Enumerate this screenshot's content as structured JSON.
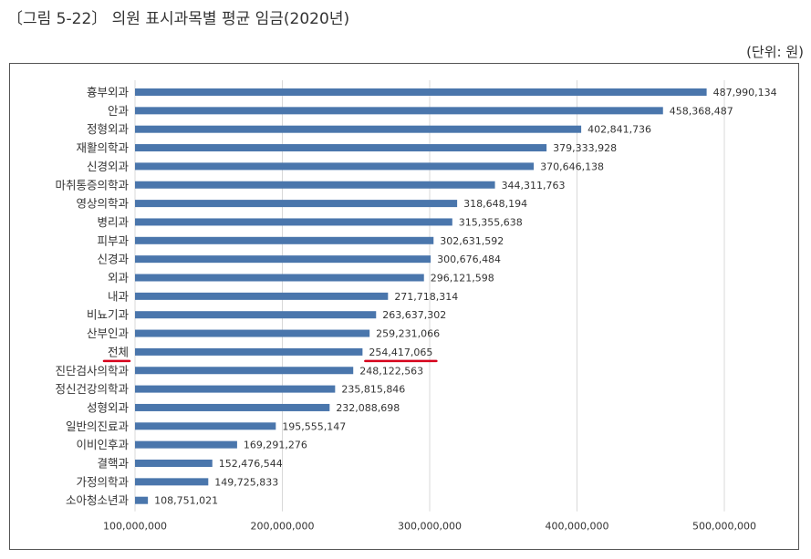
{
  "figure": {
    "title": "〔그림 5-22〕 의원 표시과목별 평균 임금(2020년)",
    "unit": "(단위: 원)"
  },
  "colors": {
    "bar": "#4a76ac",
    "grid": "#d9d9d9",
    "highlight": "#d6001c",
    "text": "#333333"
  },
  "chart_data": {
    "type": "bar",
    "orientation": "horizontal",
    "title": "",
    "xlabel": "",
    "ylabel": "",
    "xlim": [
      100000000,
      500000000
    ],
    "x_ticks": [
      100000000,
      200000000,
      300000000,
      400000000,
      500000000
    ],
    "x_tick_labels": [
      "100,000,000",
      "200,000,000",
      "300,000,000",
      "400,000,000",
      "500,000,000"
    ],
    "grid": true,
    "legend": "none",
    "highlighted_category": "전체",
    "categories": [
      "흉부외과",
      "안과",
      "정형외과",
      "재활의학과",
      "신경외과",
      "마취통증의학과",
      "영상의학과",
      "병리과",
      "피부과",
      "신경과",
      "외과",
      "내과",
      "비뇨기과",
      "산부인과",
      "전체",
      "진단검사의학과",
      "정신건강의학과",
      "성형외과",
      "일반의진료과",
      "이비인후과",
      "결핵과",
      "가정의학과",
      "소아청소년과"
    ],
    "values": [
      487990134,
      458368487,
      402841736,
      379333928,
      370646138,
      344311763,
      318648194,
      315355638,
      302631592,
      300676484,
      296121598,
      271718314,
      263637302,
      259231066,
      254417065,
      248122563,
      235815846,
      232088698,
      195555147,
      169291276,
      152476544,
      149725833,
      108751021
    ],
    "value_labels": [
      "487,990,134",
      "458,368,487",
      "402,841,736",
      "379,333,928",
      "370,646,138",
      "344,311,763",
      "318,648,194",
      "315,355,638",
      "302,631,592",
      "300,676,484",
      "296,121,598",
      "271,718,314",
      "263,637,302",
      "259,231,066",
      "254,417,065",
      "248,122,563",
      "235,815,846",
      "232,088,698",
      "195,555,147",
      "169,291,276",
      "152,476,544",
      "149,725,833",
      "108,751,021"
    ]
  }
}
